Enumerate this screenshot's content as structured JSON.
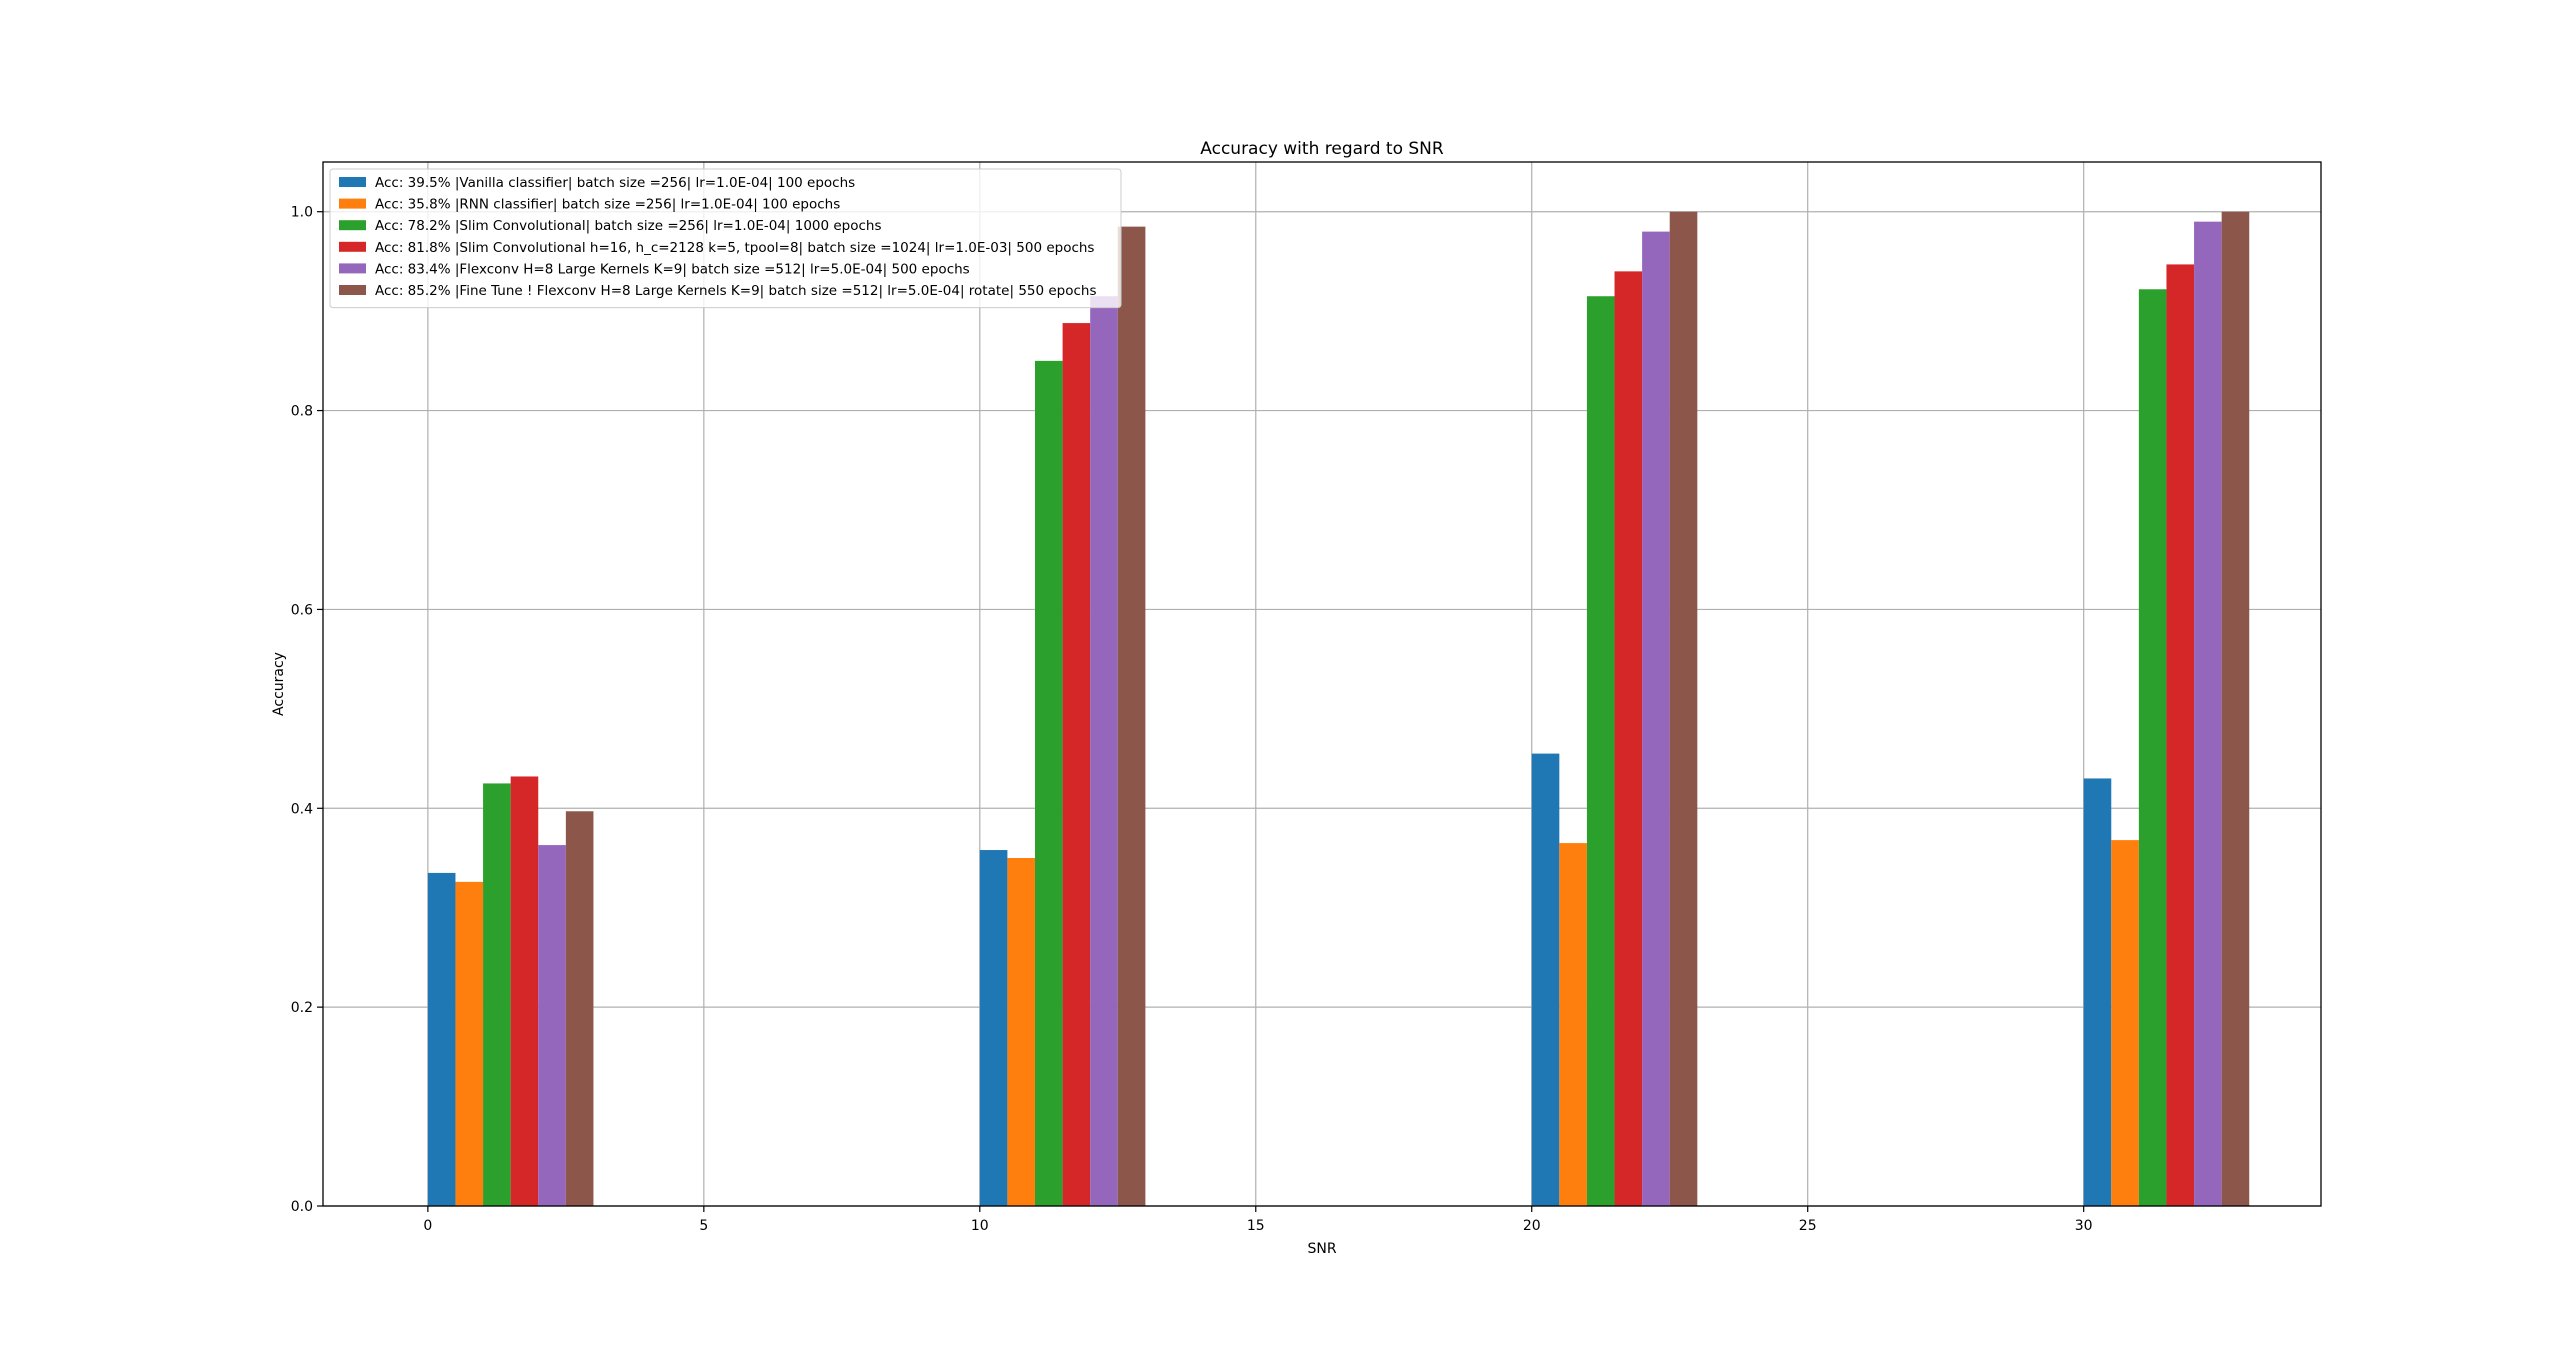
{
  "chart_data": {
    "type": "bar",
    "title": "Accuracy with regard to SNR",
    "xlabel": "SNR",
    "ylabel": "Accuracy",
    "xlim": [
      -1.9,
      34.3
    ],
    "ylim": [
      0,
      1.05
    ],
    "xticks": [
      0,
      5,
      10,
      15,
      20,
      25,
      30
    ],
    "yticks": [
      0.0,
      0.2,
      0.4,
      0.6,
      0.8,
      1.0
    ],
    "ytick_labels": [
      "0.0",
      "0.2",
      "0.4",
      "0.6",
      "0.8",
      "1.0"
    ],
    "grid": true,
    "legend_position": "upper-left",
    "categories": [
      0,
      10,
      20,
      30
    ],
    "bar_width": 0.5,
    "series": [
      {
        "name": "Acc: 39.5% |Vanilla classifier| batch size =256| lr=1.0E-04| 100 epochs",
        "color": "#1f77b4",
        "values": [
          0.335,
          0.358,
          0.455,
          0.43
        ]
      },
      {
        "name": "Acc: 35.8% |RNN classifier| batch size =256| lr=1.0E-04| 100 epochs",
        "color": "#ff7f0e",
        "values": [
          0.326,
          0.35,
          0.365,
          0.368
        ]
      },
      {
        "name": "Acc: 78.2% |Slim Convolutional| batch size =256| lr=1.0E-04| 1000 epochs",
        "color": "#2ca02c",
        "values": [
          0.425,
          0.85,
          0.915,
          0.922
        ]
      },
      {
        "name": "Acc: 81.8% |Slim Convolutional h=16, h_c=2128 k=5, tpool=8| batch size =1024| lr=1.0E-03| 500 epochs",
        "color": "#d62728",
        "values": [
          0.432,
          0.888,
          0.94,
          0.947
        ]
      },
      {
        "name": "Acc: 83.4% |Flexconv H=8 Large Kernels K=9| batch size =512| lr=5.0E-04| 500 epochs",
        "color": "#9467bd",
        "values": [
          0.363,
          0.915,
          0.98,
          0.99
        ]
      },
      {
        "name": "Acc: 85.2% |Fine Tune ! Flexconv H=8 Large Kernels K=9| batch size =512| lr=5.0E-04| rotate| 550 epochs",
        "color": "#8c564b",
        "values": [
          0.397,
          0.985,
          1.0,
          1.0
        ]
      }
    ]
  }
}
